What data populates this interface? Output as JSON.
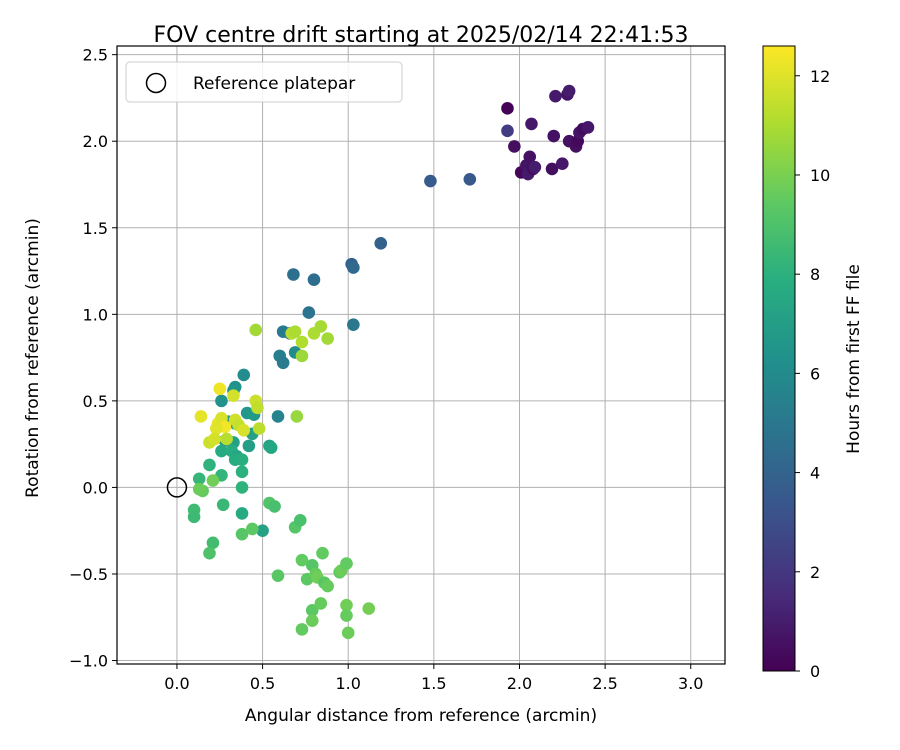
{
  "chart_data": {
    "type": "scatter",
    "title": "FOV centre drift starting at 2025/02/14 22:41:53",
    "xlabel": "Angular distance from reference (arcmin)",
    "ylabel": "Rotation from reference (arcmin)",
    "xlim": [
      -0.35,
      3.2
    ],
    "ylim": [
      -1.02,
      2.55
    ],
    "x_ticks": [
      0.0,
      0.5,
      1.0,
      1.5,
      2.0,
      2.5,
      3.0
    ],
    "x_tick_labels": [
      "0.0",
      "0.5",
      "1.0",
      "1.5",
      "2.0",
      "2.5",
      "3.0"
    ],
    "y_ticks": [
      -1.0,
      -0.5,
      0.0,
      0.5,
      1.0,
      1.5,
      2.0,
      2.5
    ],
    "y_tick_labels": [
      "−1.0",
      "−0.5",
      "0.0",
      "0.5",
      "1.0",
      "1.5",
      "2.0",
      "2.5"
    ],
    "grid": true,
    "legend": {
      "position": "top-left",
      "entries": [
        "Reference platepar"
      ]
    },
    "reference_point": {
      "x": 0.0,
      "y": 0.0
    },
    "colorbar": {
      "label": "Hours from first FF file",
      "min": 0,
      "max": 12.6,
      "ticks": [
        0,
        2,
        4,
        6,
        8,
        10,
        12
      ],
      "tick_labels": [
        "0",
        "2",
        "4",
        "6",
        "8",
        "10",
        "12"
      ],
      "colormap": "viridis"
    },
    "points": [
      {
        "x": 1.93,
        "y": 2.19,
        "c": 0.1
      },
      {
        "x": 1.93,
        "y": 2.06,
        "c": 2.2
      },
      {
        "x": 1.97,
        "y": 1.97,
        "c": 0.5
      },
      {
        "x": 2.01,
        "y": 1.82,
        "c": 0.2
      },
      {
        "x": 2.04,
        "y": 1.86,
        "c": 0.7
      },
      {
        "x": 2.05,
        "y": 1.81,
        "c": 0.9
      },
      {
        "x": 2.06,
        "y": 1.91,
        "c": 0.6
      },
      {
        "x": 2.07,
        "y": 2.1,
        "c": 0.8
      },
      {
        "x": 2.08,
        "y": 1.84,
        "c": 0.4
      },
      {
        "x": 2.09,
        "y": 1.85,
        "c": 1.0
      },
      {
        "x": 2.19,
        "y": 1.84,
        "c": 0.5
      },
      {
        "x": 2.2,
        "y": 2.03,
        "c": 0.6
      },
      {
        "x": 2.21,
        "y": 2.26,
        "c": 0.9
      },
      {
        "x": 2.25,
        "y": 1.87,
        "c": 0.8
      },
      {
        "x": 2.28,
        "y": 2.27,
        "c": 0.7
      },
      {
        "x": 2.29,
        "y": 2.29,
        "c": 1.0
      },
      {
        "x": 2.29,
        "y": 2.0,
        "c": 0.6
      },
      {
        "x": 2.33,
        "y": 1.97,
        "c": 0.5
      },
      {
        "x": 2.34,
        "y": 2.0,
        "c": 0.3
      },
      {
        "x": 2.35,
        "y": 2.05,
        "c": 0.7
      },
      {
        "x": 2.37,
        "y": 2.07,
        "c": 0.4
      },
      {
        "x": 2.4,
        "y": 2.08,
        "c": 0.8
      },
      {
        "x": 1.48,
        "y": 1.77,
        "c": 3.6
      },
      {
        "x": 1.71,
        "y": 1.78,
        "c": 3.5
      },
      {
        "x": 1.19,
        "y": 1.41,
        "c": 3.9
      },
      {
        "x": 1.02,
        "y": 1.29,
        "c": 4.0
      },
      {
        "x": 1.03,
        "y": 1.27,
        "c": 4.3
      },
      {
        "x": 0.68,
        "y": 1.23,
        "c": 4.6
      },
      {
        "x": 0.8,
        "y": 1.2,
        "c": 4.5
      },
      {
        "x": 0.77,
        "y": 1.01,
        "c": 4.8
      },
      {
        "x": 1.03,
        "y": 0.94,
        "c": 5.0
      },
      {
        "x": 0.62,
        "y": 0.9,
        "c": 5.1
      },
      {
        "x": 0.66,
        "y": 0.89,
        "c": 5.2
      },
      {
        "x": 0.6,
        "y": 0.76,
        "c": 5.4
      },
      {
        "x": 0.62,
        "y": 0.72,
        "c": 5.2
      },
      {
        "x": 0.69,
        "y": 0.78,
        "c": 6.0
      },
      {
        "x": 0.59,
        "y": 0.41,
        "c": 5.6
      },
      {
        "x": 0.39,
        "y": 0.65,
        "c": 6.1
      },
      {
        "x": 0.34,
        "y": 0.58,
        "c": 6.3
      },
      {
        "x": 0.33,
        "y": 0.56,
        "c": 6.5
      },
      {
        "x": 0.26,
        "y": 0.5,
        "c": 6.4
      },
      {
        "x": 0.41,
        "y": 0.43,
        "c": 6.6
      },
      {
        "x": 0.45,
        "y": 0.42,
        "c": 6.8
      },
      {
        "x": 0.3,
        "y": 0.38,
        "c": 6.7
      },
      {
        "x": 0.34,
        "y": 0.37,
        "c": 6.9
      },
      {
        "x": 0.42,
        "y": 0.24,
        "c": 7.0
      },
      {
        "x": 0.28,
        "y": 0.27,
        "c": 6.8
      },
      {
        "x": 0.33,
        "y": 0.26,
        "c": 7.2
      },
      {
        "x": 0.44,
        "y": 0.31,
        "c": 7.1
      },
      {
        "x": 0.54,
        "y": 0.24,
        "c": 7.3
      },
      {
        "x": 0.55,
        "y": 0.23,
        "c": 7.5
      },
      {
        "x": 0.26,
        "y": 0.21,
        "c": 7.6
      },
      {
        "x": 0.32,
        "y": 0.21,
        "c": 7.8
      },
      {
        "x": 0.35,
        "y": 0.18,
        "c": 7.4
      },
      {
        "x": 0.34,
        "y": 0.16,
        "c": 7.7
      },
      {
        "x": 0.38,
        "y": 0.16,
        "c": 7.9
      },
      {
        "x": 0.38,
        "y": 0.09,
        "c": 8.0
      },
      {
        "x": 0.19,
        "y": 0.13,
        "c": 8.1
      },
      {
        "x": 0.26,
        "y": 0.07,
        "c": 8.2
      },
      {
        "x": 0.38,
        "y": 0.0,
        "c": 8.1
      },
      {
        "x": 0.13,
        "y": 0.05,
        "c": 8.3
      },
      {
        "x": 0.27,
        "y": -0.1,
        "c": 8.4
      },
      {
        "x": 0.1,
        "y": -0.13,
        "c": 8.6
      },
      {
        "x": 0.1,
        "y": -0.17,
        "c": 8.5
      },
      {
        "x": 0.5,
        "y": -0.25,
        "c": 7.2
      },
      {
        "x": 0.21,
        "y": -0.32,
        "c": 8.7
      },
      {
        "x": 0.19,
        "y": -0.38,
        "c": 9.0
      },
      {
        "x": 0.38,
        "y": -0.15,
        "c": 7.6
      },
      {
        "x": 0.38,
        "y": -0.27,
        "c": 9.2
      },
      {
        "x": 0.44,
        "y": -0.24,
        "c": 9.4
      },
      {
        "x": 0.54,
        "y": -0.09,
        "c": 9.1
      },
      {
        "x": 0.57,
        "y": -0.11,
        "c": 8.8
      },
      {
        "x": 0.69,
        "y": -0.23,
        "c": 9.2
      },
      {
        "x": 0.72,
        "y": -0.19,
        "c": 8.9
      },
      {
        "x": 0.15,
        "y": -0.02,
        "c": 9.5
      },
      {
        "x": 0.13,
        "y": -0.01,
        "c": 9.7
      },
      {
        "x": 0.21,
        "y": 0.04,
        "c": 9.8
      },
      {
        "x": 0.59,
        "y": -0.51,
        "c": 9.3
      },
      {
        "x": 0.73,
        "y": -0.42,
        "c": 9.5
      },
      {
        "x": 0.76,
        "y": -0.53,
        "c": 9.4
      },
      {
        "x": 0.79,
        "y": -0.45,
        "c": 9.2
      },
      {
        "x": 0.81,
        "y": -0.5,
        "c": 9.6
      },
      {
        "x": 0.82,
        "y": -0.52,
        "c": 9.8
      },
      {
        "x": 0.85,
        "y": -0.38,
        "c": 9.5
      },
      {
        "x": 0.86,
        "y": -0.55,
        "c": 9.3
      },
      {
        "x": 0.88,
        "y": -0.57,
        "c": 9.6
      },
      {
        "x": 0.95,
        "y": -0.49,
        "c": 9.4
      },
      {
        "x": 0.96,
        "y": -0.48,
        "c": 9.7
      },
      {
        "x": 0.99,
        "y": -0.44,
        "c": 9.5
      },
      {
        "x": 0.79,
        "y": -0.71,
        "c": 9.4
      },
      {
        "x": 0.84,
        "y": -0.67,
        "c": 9.6
      },
      {
        "x": 0.73,
        "y": -0.82,
        "c": 9.5
      },
      {
        "x": 0.79,
        "y": -0.77,
        "c": 9.7
      },
      {
        "x": 0.99,
        "y": -0.68,
        "c": 9.8
      },
      {
        "x": 0.99,
        "y": -0.74,
        "c": 9.6
      },
      {
        "x": 1.0,
        "y": -0.84,
        "c": 9.7
      },
      {
        "x": 1.12,
        "y": -0.7,
        "c": 9.9
      },
      {
        "x": 0.46,
        "y": 0.91,
        "c": 10.8
      },
      {
        "x": 0.67,
        "y": 0.89,
        "c": 11.2
      },
      {
        "x": 0.69,
        "y": 0.9,
        "c": 11.0
      },
      {
        "x": 0.73,
        "y": 0.84,
        "c": 11.1
      },
      {
        "x": 0.73,
        "y": 0.76,
        "c": 10.7
      },
      {
        "x": 0.8,
        "y": 0.89,
        "c": 11.0
      },
      {
        "x": 0.84,
        "y": 0.93,
        "c": 10.9
      },
      {
        "x": 0.88,
        "y": 0.86,
        "c": 10.8
      },
      {
        "x": 0.7,
        "y": 0.41,
        "c": 10.6
      },
      {
        "x": 0.46,
        "y": 0.5,
        "c": 11.6
      },
      {
        "x": 0.47,
        "y": 0.46,
        "c": 11.4
      },
      {
        "x": 0.33,
        "y": 0.53,
        "c": 11.8
      },
      {
        "x": 0.25,
        "y": 0.57,
        "c": 12.3
      },
      {
        "x": 0.14,
        "y": 0.41,
        "c": 12.1
      },
      {
        "x": 0.24,
        "y": 0.37,
        "c": 12.2
      },
      {
        "x": 0.26,
        "y": 0.4,
        "c": 11.9
      },
      {
        "x": 0.28,
        "y": 0.35,
        "c": 12.4
      },
      {
        "x": 0.23,
        "y": 0.34,
        "c": 12.0
      },
      {
        "x": 0.34,
        "y": 0.39,
        "c": 11.7
      },
      {
        "x": 0.36,
        "y": 0.36,
        "c": 11.5
      },
      {
        "x": 0.39,
        "y": 0.33,
        "c": 11.9
      },
      {
        "x": 0.48,
        "y": 0.34,
        "c": 11.3
      },
      {
        "x": 0.19,
        "y": 0.26,
        "c": 11.6
      },
      {
        "x": 0.22,
        "y": 0.28,
        "c": 11.8
      },
      {
        "x": 0.29,
        "y": 0.28,
        "c": 11.2
      }
    ]
  }
}
